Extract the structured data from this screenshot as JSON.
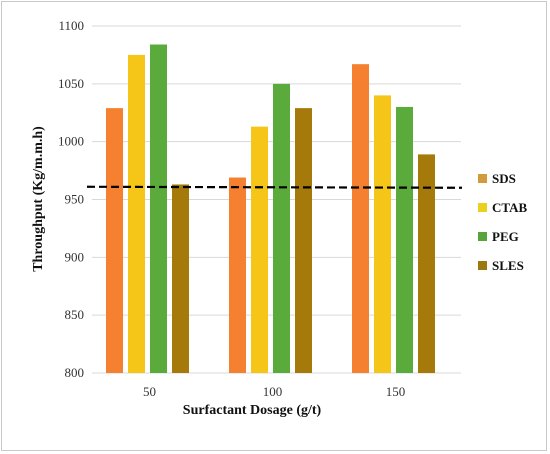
{
  "chart_data": {
    "type": "bar",
    "title": "",
    "xlabel": "Surfactant Dosage (g/t)",
    "ylabel": "Throughput (Kg/m.m.h)",
    "categories": [
      "50",
      "100",
      "150"
    ],
    "ylim": [
      800,
      1100
    ],
    "yticks": [
      800,
      850,
      900,
      950,
      1000,
      1050,
      1100
    ],
    "grid": "horizontal",
    "legend_position": "right",
    "series": [
      {
        "name": "SDS",
        "color": "#f58030",
        "values": [
          1029,
          969,
          1067
        ]
      },
      {
        "name": "CTAB",
        "color": "#f5c518",
        "values": [
          1075,
          1013,
          1040
        ]
      },
      {
        "name": "PEG",
        "color": "#5aab3c",
        "values": [
          1084,
          1050,
          1030
        ]
      },
      {
        "name": "SLES",
        "color": "#a67a0a",
        "values": [
          963,
          1029,
          989
        ]
      }
    ],
    "legend_colors": [
      "#d19a3c",
      "#e8d21e",
      "#58a43c",
      "#9a7a10"
    ],
    "reference_line": {
      "value": 961,
      "style": "dashed",
      "color": "#000000"
    }
  }
}
